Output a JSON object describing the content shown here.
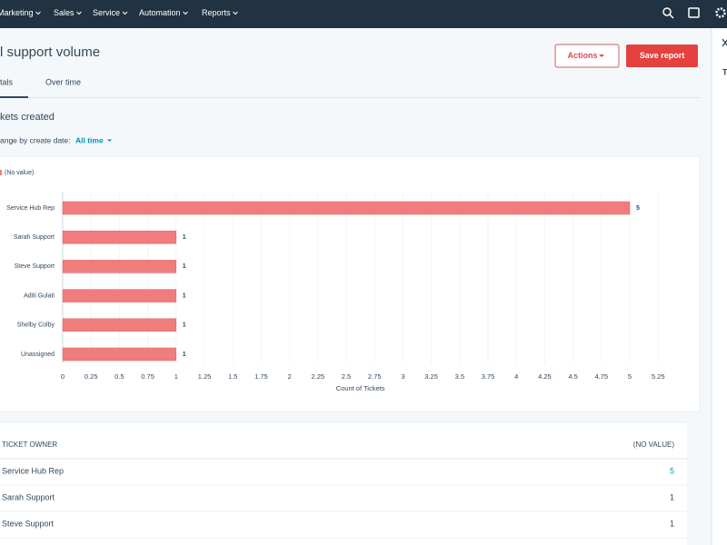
{
  "nav": {
    "items": [
      "Marketing",
      "Sales",
      "Service",
      "Automation",
      "Reports"
    ]
  },
  "header": {
    "title": "l support volume",
    "actions_button": "Actions",
    "save_button": "Save report"
  },
  "tabs": [
    "tals",
    "Over time"
  ],
  "report": {
    "subtitle": "kets created",
    "filter_label": "ange by create date:",
    "filter_value": "All time"
  },
  "side_panel": {
    "title": "T"
  },
  "chart_data": {
    "type": "bar",
    "orientation": "horizontal",
    "legend": "(No value)",
    "x_label": "Count of Tickets",
    "categories": [
      "Service Hub Rep",
      "Sarah Support",
      "Steve Support",
      "Aditi Gulati",
      "Shelby Colby",
      "Unassigned"
    ],
    "values": [
      5,
      1,
      1,
      1,
      1,
      1
    ],
    "color": "#f07c7e",
    "xlim": [
      0,
      5.25
    ],
    "xticks": [
      0,
      0.25,
      0.5,
      0.75,
      1,
      1.25,
      1.5,
      1.75,
      2,
      2.25,
      2.5,
      2.75,
      3,
      3.25,
      3.5,
      3.75,
      4,
      4.25,
      4.5,
      4.75,
      5,
      5.25
    ],
    "grid": true
  },
  "table": {
    "headers": [
      "TICKET OWNER",
      "(NO VALUE)"
    ],
    "rows": [
      [
        "Service Hub Rep",
        5
      ],
      [
        "Sarah Support",
        1
      ],
      [
        "Steve Support",
        1
      ]
    ]
  }
}
